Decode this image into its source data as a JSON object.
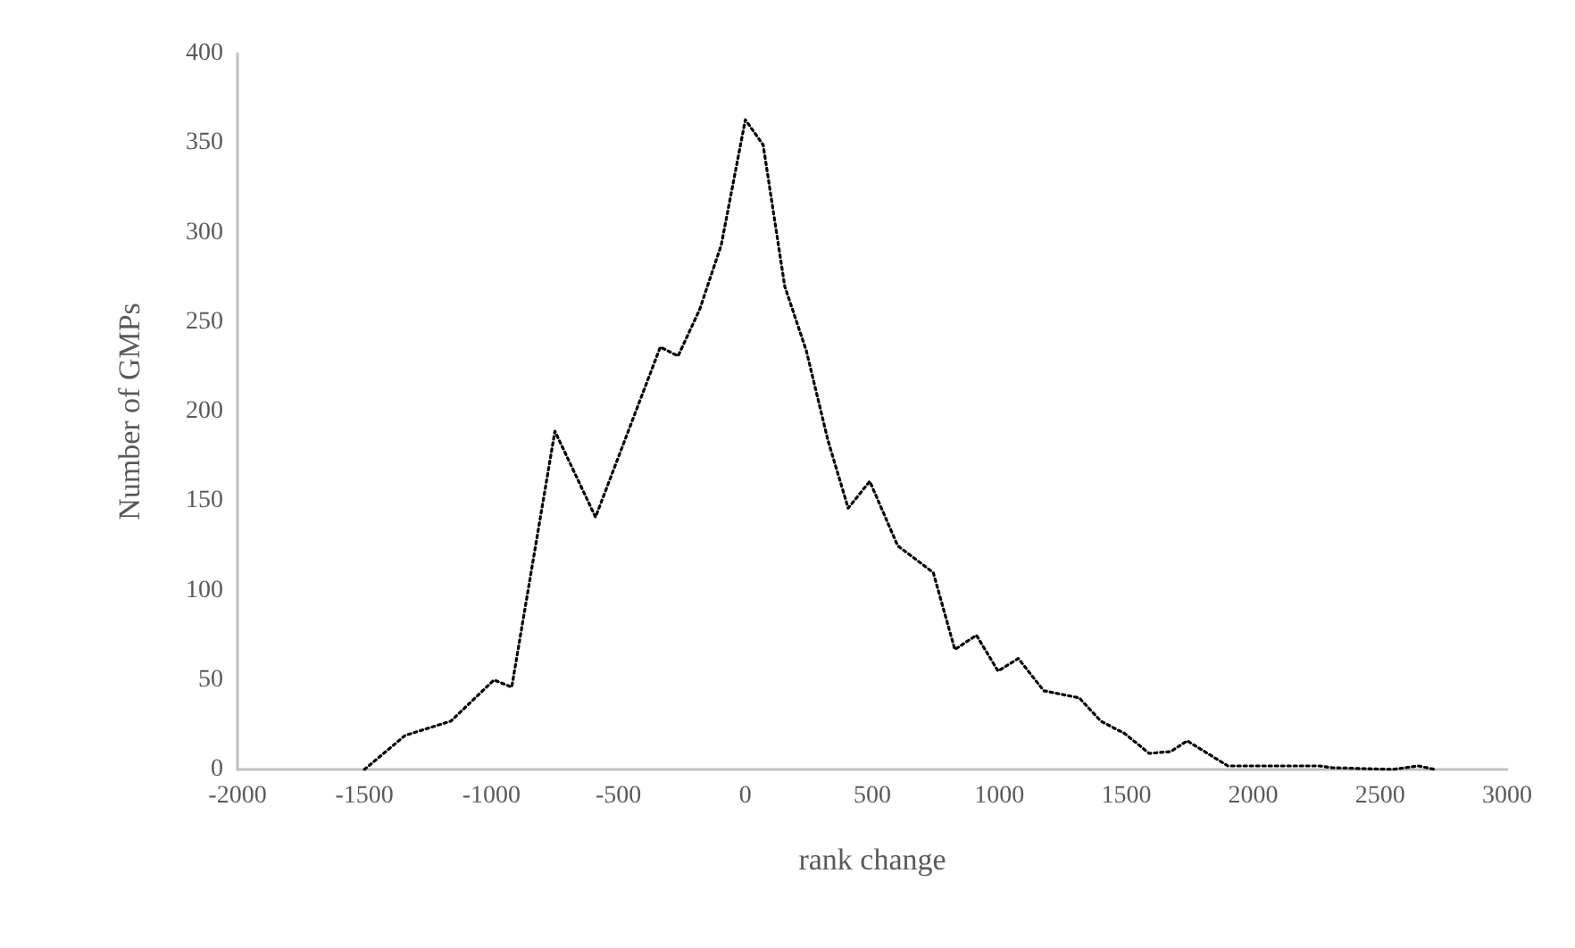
{
  "chart_data": {
    "type": "line",
    "xlabel": "rank change",
    "ylabel": "Number of GMPs",
    "x": [
      -1500,
      -1340,
      -1160,
      -990,
      -920,
      -750,
      -590,
      -335,
      -265,
      -180,
      -95,
      0,
      70,
      155,
      240,
      325,
      405,
      490,
      600,
      740,
      825,
      910,
      995,
      1075,
      1175,
      1315,
      1400,
      1495,
      1590,
      1675,
      1740,
      1900,
      2260,
      2310,
      2550,
      2650,
      2715
    ],
    "series": [
      {
        "color": "#000000",
        "values": [
          0,
          19,
          27,
          50,
          46,
          189,
          141,
          236,
          231,
          257,
          293,
          363,
          349,
          270,
          234,
          184,
          146,
          161,
          125,
          110,
          67,
          75,
          55,
          62,
          44,
          40,
          27,
          20,
          9,
          10,
          16,
          2,
          2,
          1,
          0,
          2,
          0
        ]
      }
    ],
    "xlim": [
      -2000,
      3000
    ],
    "xticks": [
      -2000,
      -1500,
      -1000,
      -500,
      0,
      500,
      1000,
      1500,
      2000,
      2500,
      3000
    ],
    "ylim": [
      0,
      400
    ],
    "yticks": [
      0,
      50,
      100,
      150,
      200,
      250,
      300,
      350,
      400
    ],
    "grid": false,
    "marker": "none",
    "line_style": "dotted"
  }
}
